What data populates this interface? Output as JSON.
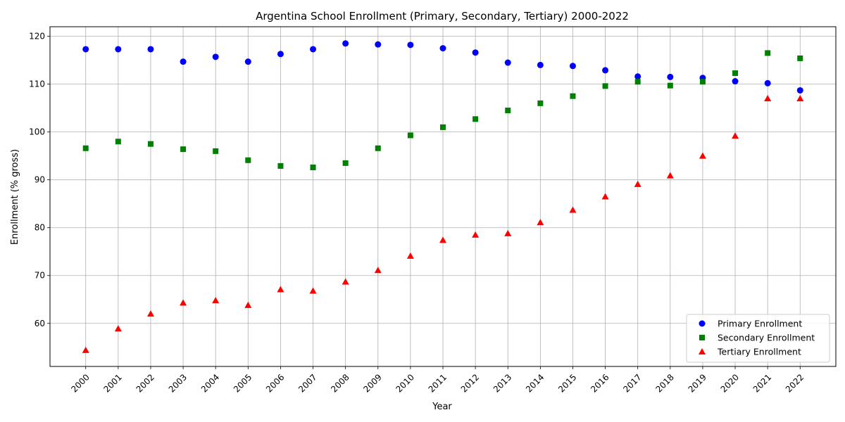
{
  "chart_data": {
    "type": "scatter",
    "title": "Argentina School Enrollment (Primary, Secondary, Tertiary) 2000-2022",
    "xlabel": "Year",
    "ylabel": "Enrollment (% gross)",
    "x": [
      2000,
      2001,
      2002,
      2003,
      2004,
      2005,
      2006,
      2007,
      2008,
      2009,
      2010,
      2011,
      2012,
      2013,
      2014,
      2015,
      2016,
      2017,
      2018,
      2019,
      2020,
      2021,
      2022
    ],
    "x_tick_labels": [
      "2000",
      "2001",
      "2002",
      "2003",
      "2004",
      "2005",
      "2006",
      "2007",
      "2008",
      "2009",
      "2010",
      "2011",
      "2012",
      "2013",
      "2014",
      "2015",
      "2016",
      "2017",
      "2018",
      "2019",
      "2020",
      "2021",
      "2022"
    ],
    "xlim": [
      1998.9,
      2023.1
    ],
    "ylim": [
      51.0,
      122.0
    ],
    "y_ticks": [
      60,
      70,
      80,
      90,
      100,
      110,
      120
    ],
    "y_tick_labels": [
      "60",
      "70",
      "80",
      "90",
      "100",
      "110",
      "120"
    ],
    "grid": true,
    "legend_position": "bottom-right",
    "series": [
      {
        "name": "Primary Enrollment",
        "marker": "circle",
        "color": "#0000ff",
        "values": [
          117.3,
          117.3,
          117.3,
          114.7,
          115.7,
          114.7,
          116.3,
          117.3,
          118.5,
          118.3,
          118.2,
          117.5,
          116.6,
          114.5,
          114.0,
          113.8,
          112.9,
          111.6,
          111.5,
          111.3,
          110.6,
          110.2,
          108.7
        ]
      },
      {
        "name": "Secondary Enrollment",
        "marker": "square",
        "color": "#008000",
        "values": [
          96.6,
          98.0,
          97.5,
          96.4,
          96.0,
          94.1,
          92.9,
          92.6,
          93.5,
          96.6,
          99.3,
          101.0,
          102.7,
          104.5,
          106.0,
          107.5,
          109.6,
          110.5,
          109.7,
          110.5,
          112.3,
          116.5,
          115.4
        ]
      },
      {
        "name": "Tertiary Enrollment",
        "marker": "triangle",
        "color": "#ff0000",
        "values": [
          54.4,
          58.9,
          62.0,
          64.3,
          64.8,
          63.8,
          67.1,
          66.8,
          68.7,
          71.1,
          74.1,
          77.4,
          78.5,
          78.8,
          81.1,
          83.7,
          86.5,
          89.1,
          90.9,
          95.0,
          99.2,
          107.0,
          107.0
        ]
      }
    ]
  }
}
